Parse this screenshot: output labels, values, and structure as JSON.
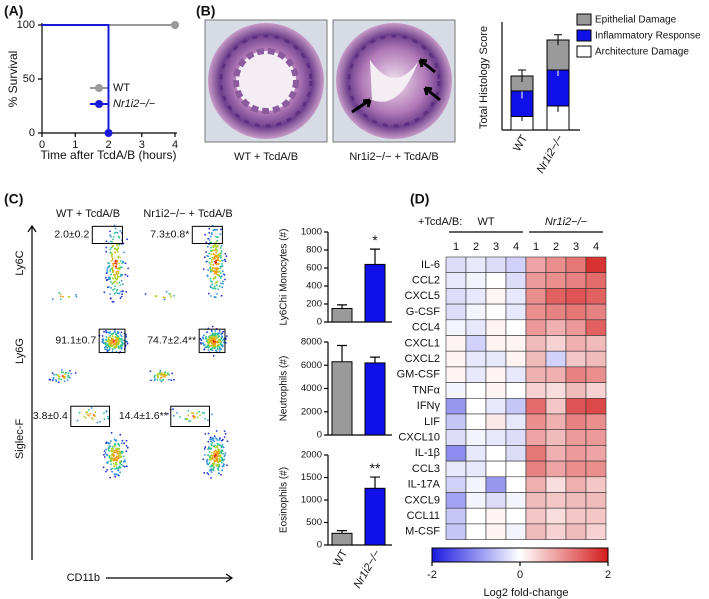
{
  "panel_labels": [
    "(A)",
    "(B)",
    "(C)",
    "(D)"
  ],
  "histology_images": {
    "captions": [
      "WT + TcdA/B",
      "Nr1i2−/− + TcdA/B"
    ]
  },
  "flow": {
    "column_titles": [
      "WT + TcdA/B",
      "Nr1i2−/− + TcdA/B"
    ],
    "row_labels": [
      "Ly6C",
      "Ly6G",
      "Siglec-F"
    ],
    "x_label": "CD11b",
    "gates": [
      [
        "2.0±0.2",
        "7.3±0.8*"
      ],
      [
        "91.1±0.7",
        "74.7±2.4**"
      ],
      [
        "3.8±0.4",
        "14.4±1.6**"
      ]
    ]
  },
  "chart_data": [
    {
      "type": "line",
      "x_label": "Time after TcdA/B (hours)",
      "y_label": "% Survival",
      "xlim": [
        0,
        4
      ],
      "xticks": [
        0,
        1,
        2,
        3,
        4
      ],
      "ylim": [
        0,
        100
      ],
      "yticks": [
        0,
        50,
        100
      ],
      "series": [
        {
          "name": "WT",
          "color": "#9a9a9a",
          "x": [
            0,
            4
          ],
          "values": [
            100,
            100
          ]
        },
        {
          "name": "Nr1i2−/−",
          "color": "#1a1adb",
          "x": [
            0,
            2,
            2
          ],
          "values": [
            100,
            100,
            0
          ]
        }
      ]
    },
    {
      "type": "stacked_bar",
      "y_label": "Total Histology Score",
      "categories": [
        "WT",
        "Nr1i2−/−"
      ],
      "ylim": [
        0,
        7
      ],
      "series": [
        {
          "name": "Architecture Damage",
          "color": "#ffffff",
          "values": [
            0.9,
            1.6
          ],
          "errors": [
            0.3,
            0.4
          ]
        },
        {
          "name": "Inflammatory Response",
          "color": "#1010e8",
          "values": [
            1.7,
            2.4
          ],
          "errors": [
            0.5,
            0.4
          ]
        },
        {
          "name": "Epithelial Damage",
          "color": "#9a9a9a",
          "values": [
            1.0,
            2.0
          ],
          "errors": [
            0.4,
            0.35
          ]
        }
      ]
    },
    {
      "type": "bar",
      "y_label": "Ly6Chi Monocytes (#)",
      "values": [
        150,
        640
      ],
      "errors": [
        40,
        170
      ],
      "colors": [
        "#9a9a9a",
        "#1010e8"
      ],
      "annotation": "*",
      "ylim": [
        0,
        1000
      ],
      "yticks": [
        0,
        200,
        400,
        600,
        800,
        1000
      ]
    },
    {
      "type": "bar",
      "y_label": "Neutrophils (#)",
      "values": [
        6300,
        6200
      ],
      "errors": [
        1400,
        500
      ],
      "colors": [
        "#9a9a9a",
        "#1010e8"
      ],
      "ylim": [
        0,
        8000
      ],
      "yticks": [
        0,
        2000,
        4000,
        6000,
        8000
      ]
    },
    {
      "type": "bar",
      "y_label": "Eosinophils (#)",
      "categories": [
        "WT",
        "Nr1i2−/−"
      ],
      "values": [
        260,
        1260
      ],
      "errors": [
        60,
        250
      ],
      "colors": [
        "#9a9a9a",
        "#1010e8"
      ],
      "annotation": "**",
      "ylim": [
        0,
        2000
      ],
      "yticks": [
        0,
        500,
        1000,
        1500,
        2000
      ]
    },
    {
      "type": "heatmap",
      "prefix": "+TcdA/B:",
      "column_groups": [
        {
          "name": "WT",
          "columns": [
            "1",
            "2",
            "3",
            "4"
          ]
        },
        {
          "name": "Nr1i2−/−",
          "columns": [
            "1",
            "2",
            "3",
            "4"
          ]
        }
      ],
      "row_labels": [
        "IL-6",
        "CCL2",
        "CXCL5",
        "G-CSF",
        "CCL4",
        "CXCL1",
        "CXCL2",
        "GM-CSF",
        "TNFα",
        "IFNγ",
        "LIF",
        "CXCL10",
        "IL-1β",
        "CCL3",
        "IL-17A",
        "CXCL9",
        "CCL11",
        "M-CSF"
      ],
      "values": [
        [
          -0.3,
          -0.2,
          -0.3,
          -0.4,
          0.8,
          1.0,
          1.2,
          1.8
        ],
        [
          -0.2,
          -0.1,
          0.0,
          -0.3,
          0.9,
          1.0,
          1.1,
          1.3
        ],
        [
          -0.3,
          -0.2,
          0.1,
          -0.2,
          1.0,
          1.4,
          1.5,
          1.4
        ],
        [
          -0.3,
          -0.1,
          0.0,
          -0.2,
          1.0,
          1.1,
          1.2,
          1.1
        ],
        [
          -0.1,
          -0.2,
          0.1,
          0.0,
          0.9,
          0.7,
          0.9,
          1.4
        ],
        [
          0.1,
          -0.4,
          0.1,
          0.1,
          0.6,
          0.4,
          0.7,
          0.6
        ],
        [
          0.1,
          -0.2,
          -0.2,
          0.1,
          0.6,
          -0.4,
          0.5,
          0.6
        ],
        [
          0.1,
          -0.2,
          0.1,
          -0.2,
          0.7,
          0.7,
          1.1,
          1.0
        ],
        [
          -0.1,
          0.0,
          0.1,
          0.0,
          0.4,
          0.3,
          0.6,
          0.4
        ],
        [
          -0.9,
          0.0,
          -0.2,
          -0.5,
          1.3,
          0.5,
          1.5,
          1.6
        ],
        [
          -0.5,
          0.0,
          0.2,
          -0.2,
          1.0,
          0.7,
          1.1,
          1.0
        ],
        [
          -0.3,
          -0.1,
          -0.2,
          -0.3,
          0.8,
          0.6,
          0.9,
          0.9
        ],
        [
          -1.0,
          -0.2,
          0.0,
          -0.3,
          1.2,
          0.7,
          0.9,
          0.8
        ],
        [
          -0.2,
          -0.2,
          0.0,
          0.0,
          1.1,
          0.8,
          1.0,
          1.0
        ],
        [
          -0.4,
          -0.1,
          -0.9,
          0.0,
          0.7,
          0.3,
          0.7,
          0.5
        ],
        [
          -0.8,
          -0.1,
          -0.3,
          -0.1,
          0.6,
          0.5,
          0.6,
          0.6
        ],
        [
          -0.5,
          0.0,
          0.1,
          0.0,
          0.5,
          0.3,
          0.5,
          0.5
        ],
        [
          -0.5,
          0.0,
          0.1,
          -0.1,
          0.6,
          0.4,
          0.6,
          0.4
        ]
      ],
      "colors": [
        "#1a1ae0",
        "#ffffff",
        "#d41c1c"
      ],
      "colorbar": {
        "label": "Log2 fold-change",
        "lim": [
          -2,
          2
        ],
        "ticks": [
          -2,
          0,
          2
        ]
      }
    }
  ]
}
